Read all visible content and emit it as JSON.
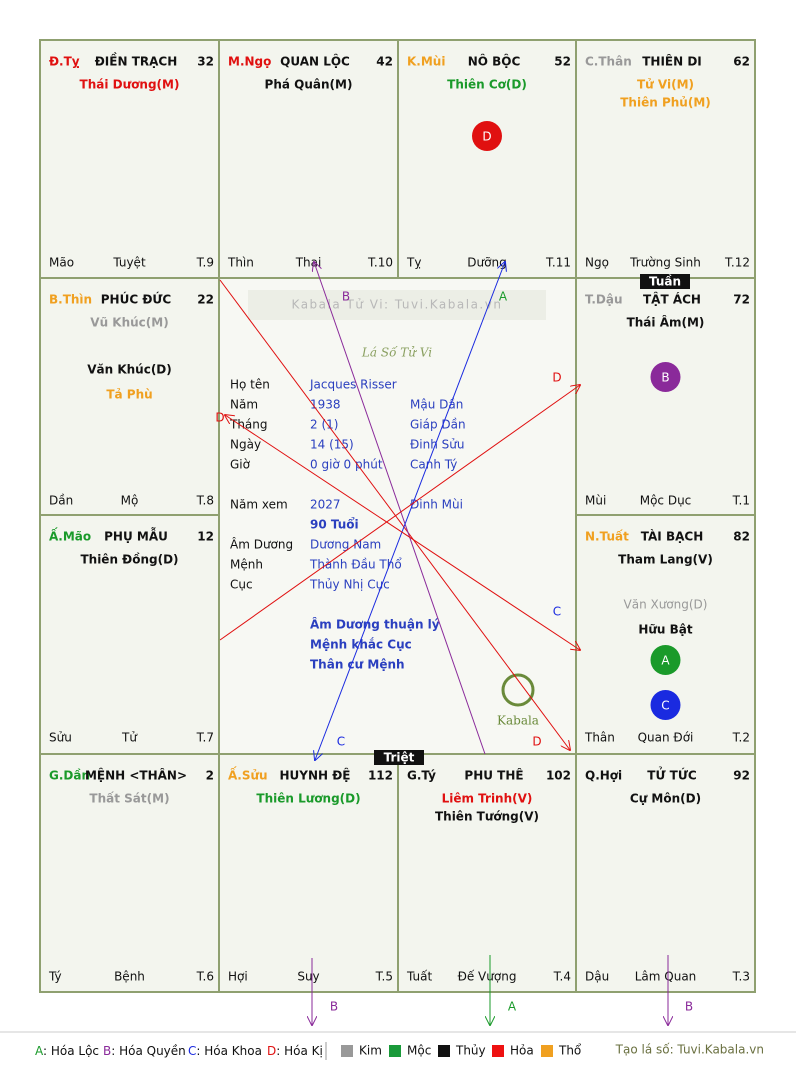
{
  "watermark": "Kabala Tử Vi: Tuvi.Kabala.vn",
  "heading": "Lá Số Tử Vi",
  "logo": "Kabala",
  "markers": {
    "tuan": "Tuần",
    "triet": "Triệt"
  },
  "cells": [
    {
      "stem": "Đ.Tỵ",
      "stem_color": "#e01010",
      "palace": "ĐIỀN TRẠCH",
      "number": "32",
      "stars": [
        {
          "name": "Thái Dương(M)",
          "color": "#e01010"
        }
      ],
      "minor": [],
      "badges": [],
      "bottom": [
        "Mão",
        "Tuyệt",
        "T.9"
      ]
    },
    {
      "stem": "M.Ngọ",
      "stem_color": "#e01010",
      "palace": "QUAN LỘC",
      "number": "42",
      "stars": [
        {
          "name": "Phá Quân(M)",
          "color": "#111111"
        }
      ],
      "minor": [],
      "badges": [],
      "bottom": [
        "Thìn",
        "Thai",
        "T.10"
      ]
    },
    {
      "stem": "K.Mùi",
      "stem_color": "#f0a020",
      "palace": "NÔ BỘC",
      "number": "52",
      "stars": [
        {
          "name": "Thiên Cơ(D)",
          "color": "#1a9a2a"
        }
      ],
      "minor": [],
      "badges": [
        {
          "letter": "D",
          "color": "#e01010"
        }
      ],
      "bottom": [
        "Tỵ",
        "Dưỡng",
        "T.11"
      ]
    },
    {
      "stem": "C.Thân",
      "stem_color": "#999999",
      "palace": "THIÊN DI",
      "number": "62",
      "stars": [
        {
          "name": "Tử Vi(M)",
          "color": "#f0a020"
        },
        {
          "name": "Thiên Phủ(M)",
          "color": "#f0a020"
        }
      ],
      "minor": [],
      "badges": [],
      "bottom": [
        "Ngọ",
        "Trường Sinh",
        "T.12"
      ]
    },
    {
      "stem": "B.Thìn",
      "stem_color": "#f0a020",
      "palace": "PHÚC ĐỨC",
      "number": "22",
      "stars": [
        {
          "name": "Vũ Khúc(M)",
          "color": "#999999"
        }
      ],
      "minor": [
        {
          "name": "Văn Khúc(D)",
          "color": "#111111"
        },
        {
          "name": "Tả Phù",
          "color": "#f0a020"
        }
      ],
      "badges": [],
      "bottom": [
        "Dần",
        "Mộ",
        "T.8"
      ]
    },
    {
      "stem": "T.Dậu",
      "stem_color": "#999999",
      "palace": "TẬT ÁCH",
      "number": "72",
      "stars": [
        {
          "name": "Thái Âm(M)",
          "color": "#111111"
        }
      ],
      "minor": [],
      "badges": [
        {
          "letter": "B",
          "color": "#8a2a9a"
        }
      ],
      "bottom": [
        "Mùi",
        "Mộc Dục",
        "T.1"
      ]
    },
    {
      "stem": "Ấ.Mão",
      "stem_color": "#1a9a2a",
      "palace": "PHỤ MẪU",
      "number": "12",
      "stars": [
        {
          "name": "Thiên Đồng(D)",
          "color": "#111111"
        }
      ],
      "minor": [],
      "badges": [],
      "bottom": [
        "Sửu",
        "Tử",
        "T.7"
      ]
    },
    {
      "stem": "N.Tuất",
      "stem_color": "#f0a020",
      "palace": "TÀI BẠCH",
      "number": "82",
      "stars": [
        {
          "name": "Tham Lang(V)",
          "color": "#111111"
        }
      ],
      "minor": [
        {
          "name": "Văn Xương(D)",
          "color": "#999999"
        },
        {
          "name": "Hữu Bật",
          "color": "#111111"
        }
      ],
      "badges": [
        {
          "letter": "A",
          "color": "#1a9a2a"
        },
        {
          "letter": "C",
          "color": "#1a2ae0"
        }
      ],
      "bottom": [
        "Thân",
        "Quan Đới",
        "T.2"
      ]
    },
    {
      "stem": "G.Dần",
      "stem_color": "#1a9a2a",
      "palace": "MỆNH <THÂN>",
      "number": "2",
      "stars": [
        {
          "name": "Thất Sát(M)",
          "color": "#999999"
        }
      ],
      "minor": [],
      "badges": [],
      "bottom": [
        "Tý",
        "Bệnh",
        "T.6"
      ]
    },
    {
      "stem": "Ấ.Sửu",
      "stem_color": "#f0a020",
      "palace": "HUYNH ĐỆ",
      "number": "112",
      "stars": [
        {
          "name": "Thiên Lương(D)",
          "color": "#1a9a2a"
        }
      ],
      "minor": [],
      "badges": [],
      "bottom": [
        "Hợi",
        "Suy",
        "T.5"
      ]
    },
    {
      "stem": "G.Tý",
      "stem_color": "#111111",
      "palace": "PHU THÊ",
      "number": "102",
      "stars": [
        {
          "name": "Liêm Trinh(V)",
          "color": "#e01010"
        },
        {
          "name": "Thiên Tướng(V)",
          "color": "#111111"
        }
      ],
      "minor": [],
      "badges": [],
      "bottom": [
        "Tuất",
        "Đế Vượng",
        "T.4"
      ]
    },
    {
      "stem": "Q.Hợi",
      "stem_color": "#111111",
      "palace": "TỬ TỨC",
      "number": "92",
      "stars": [
        {
          "name": "Cự Môn(D)",
          "color": "#111111"
        }
      ],
      "minor": [],
      "badges": [],
      "bottom": [
        "Dậu",
        "Lâm Quan",
        "T.3"
      ]
    }
  ],
  "info": [
    {
      "label": "Họ tên",
      "value": "Jacques Risser",
      "extra": null
    },
    {
      "label": "Năm",
      "value": "1938",
      "extra": "Mậu Dần"
    },
    {
      "label": "Tháng",
      "value": "2  (1)",
      "extra": "Giáp Dần"
    },
    {
      "label": "Ngày",
      "value": "14  (15)",
      "extra": "Đinh Sửu"
    },
    {
      "label": "Giờ",
      "value": "0 giờ 0 phút",
      "extra": "Canh Tý"
    },
    {
      "label": "Năm xem",
      "value": "2027",
      "extra": "Đinh Mùi"
    },
    {
      "label": null,
      "value": "90 Tuổi",
      "extra": null
    },
    {
      "label": "Âm Dương",
      "value": "Dương Nam",
      "extra": null
    },
    {
      "label": "Mệnh",
      "value": "Thành Đầu Thổ",
      "extra": null
    },
    {
      "label": "Cục",
      "value": "Thủy Nhị Cục",
      "extra": null
    }
  ],
  "notes": [
    "Âm Dương thuận lý",
    "Mệnh khắc Cục",
    "Thân cư Mệnh"
  ],
  "arrow_labels": [
    {
      "letter": "B",
      "color": "#8a2a9a"
    },
    {
      "letter": "A",
      "color": "#1a9a2a"
    },
    {
      "letter": "D",
      "color": "#e01010"
    },
    {
      "letter": "D",
      "color": "#e01010"
    },
    {
      "letter": "C",
      "color": "#1a2ae0"
    },
    {
      "letter": "C",
      "color": "#1a2ae0"
    },
    {
      "letter": "D",
      "color": "#e01010"
    },
    {
      "letter": "B",
      "color": "#8a2a9a"
    },
    {
      "letter": "A",
      "color": "#1a9a2a"
    },
    {
      "letter": "B",
      "color": "#8a2a9a"
    }
  ],
  "legend": {
    "keys": [
      {
        "letter": "A",
        "text": ": Hóa Lộc",
        "color": "#1a9a2a"
      },
      {
        "letter": "B",
        "text": ": Hóa Quyền",
        "color": "#8a2a9a"
      },
      {
        "letter": "C",
        "text": ": Hóa Khoa",
        "color": "#1a2ae0"
      },
      {
        "letter": "D",
        "text": ": Hóa Kị",
        "color": "#e01010"
      }
    ],
    "elements": [
      {
        "name": "Kim",
        "color": "#999999"
      },
      {
        "name": "Mộc",
        "color": "#1a9a3a"
      },
      {
        "name": "Thủy",
        "color": "#111111"
      },
      {
        "name": "Hỏa",
        "color": "#ee1111"
      },
      {
        "name": "Thổ",
        "color": "#f0a020"
      }
    ],
    "credit": "Tạo lá số: Tuvi.Kabala.vn"
  }
}
